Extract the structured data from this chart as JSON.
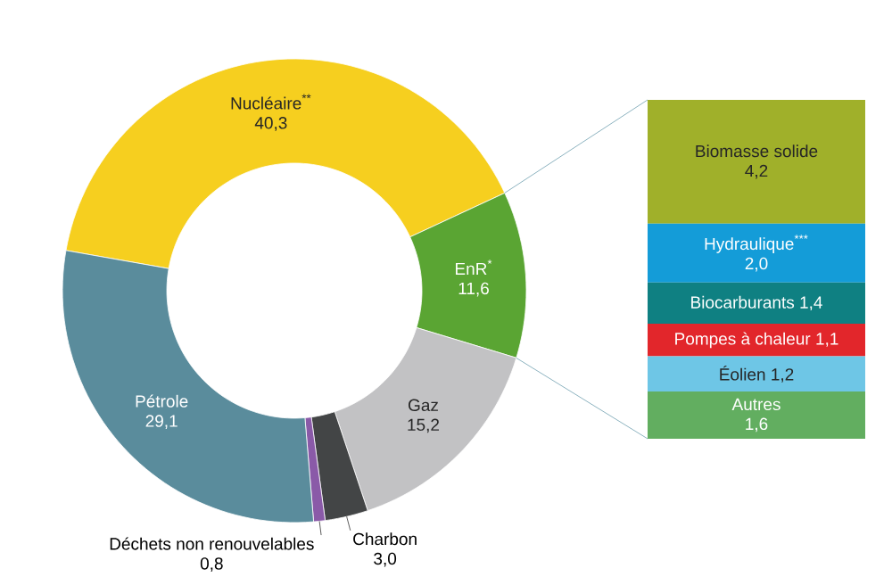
{
  "chart_data": [
    {
      "type": "donut",
      "categories": [
        "Nucléaire$^{**}$",
        "EnR$^{*}$",
        "Gaz",
        "Charbon",
        "Déchets non renouvelables",
        "Pétrole"
      ],
      "values": [
        40.3,
        11.6,
        15.2,
        3.0,
        0.8,
        29.1
      ],
      "value_labels": [
        "40,3",
        "11,6",
        "15,2",
        "3,0",
        "0,8",
        "29,1"
      ],
      "colors": [
        "#f6cf1f",
        "#5aa533",
        "#c2c2c4",
        "#434546",
        "#8a5aa8",
        "#5a8c9c"
      ]
    },
    {
      "type": "bar",
      "stacked": true,
      "categories": [
        null
      ],
      "series": [
        {
          "name": "Autres",
          "color": "#62ae60",
          "values": [
            1.6
          ],
          "value_labels": [
            "1,6"
          ]
        },
        {
          "name": "Éolien",
          "color": "#6ec6e6",
          "values": [
            1.2
          ],
          "value_labels": [
            "1,2"
          ]
        },
        {
          "name": "Pompes à chaleur",
          "color": "#e2262b",
          "values": [
            1.1
          ],
          "value_labels": [
            "1,1"
          ]
        },
        {
          "name": "Biocarburants",
          "color": "#0f8082",
          "values": [
            1.4
          ],
          "value_labels": [
            "1,4"
          ]
        },
        {
          "name": "Hydraulique$^{***}$",
          "color": "#149cd8",
          "values": [
            2.0
          ],
          "value_labels": [
            "2,0"
          ]
        },
        {
          "name": "Biomasse solide",
          "color": "#a0b02a",
          "values": [
            4.2
          ],
          "value_labels": [
            "4,2"
          ]
        }
      ]
    }
  ]
}
